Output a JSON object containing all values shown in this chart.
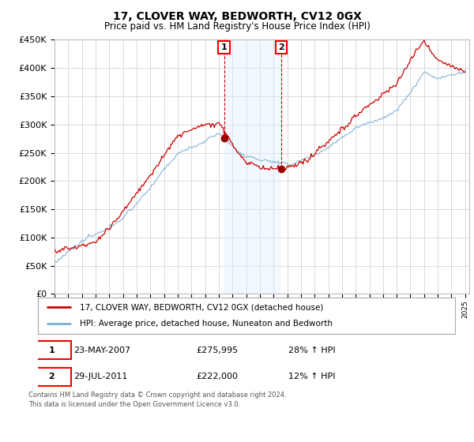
{
  "title": "17, CLOVER WAY, BEDWORTH, CV12 0GX",
  "subtitle": "Price paid vs. HM Land Registry's House Price Index (HPI)",
  "ylim": [
    0,
    450000
  ],
  "yticks": [
    0,
    50000,
    100000,
    150000,
    200000,
    250000,
    300000,
    350000,
    400000,
    450000
  ],
  "sale1_date": "23-MAY-2007",
  "sale1_price": 275995,
  "sale1_pct": "28%",
  "sale2_date": "29-JUL-2011",
  "sale2_price": 222000,
  "sale2_pct": "12%",
  "sale1_year": 2007.38,
  "sale2_year": 2011.57,
  "legend_line1": "17, CLOVER WAY, BEDWORTH, CV12 0GX (detached house)",
  "legend_line2": "HPI: Average price, detached house, Nuneaton and Bedworth",
  "footnote1": "Contains HM Land Registry data © Crown copyright and database right 2024.",
  "footnote2": "This data is licensed under the Open Government Licence v3.0.",
  "property_line_color": "#cc0000",
  "hpi_line_color": "#7aadd4",
  "shade_color": "#ddeeff",
  "background_color": "#ffffff",
  "grid_color": "#cccccc",
  "sale_marker_color": "#990000"
}
